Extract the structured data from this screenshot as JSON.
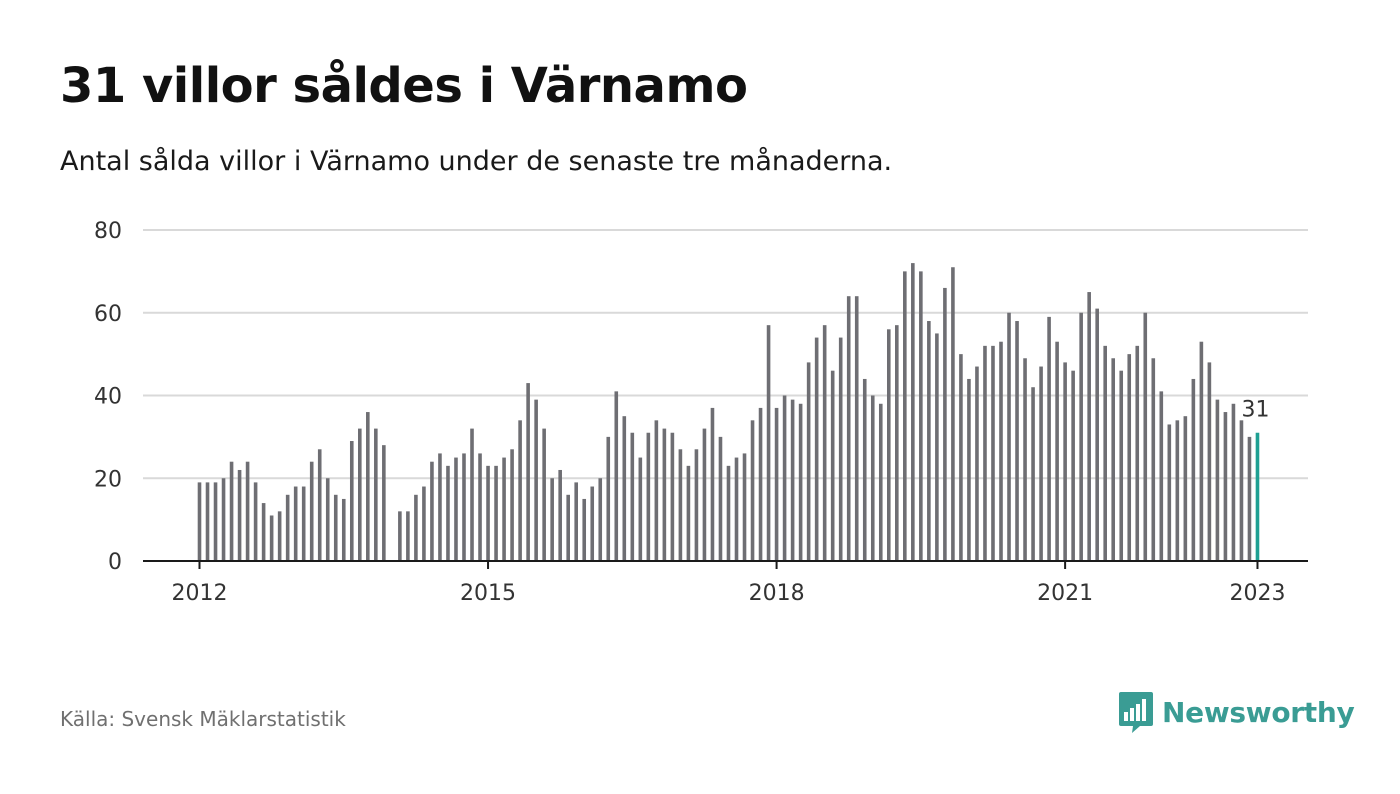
{
  "title": "31 villor såldes i Värnamo",
  "subtitle": "Antal sålda villor i Värnamo under de senaste tre månaderna.",
  "source": "Källa: Svensk Mäklarstatistik",
  "brand": {
    "name": "Newsworthy",
    "color": "#3a9c94",
    "icon": "bar-chart-speech-bubble-icon"
  },
  "chart_data": {
    "type": "bar",
    "title": "31 villor såldes i Värnamo",
    "xlabel": "",
    "ylabel": "",
    "ylim": [
      0,
      80
    ],
    "y_ticks": [
      0,
      20,
      40,
      60,
      80
    ],
    "x_ticks": [
      "2012",
      "2015",
      "2018",
      "2021",
      "2023"
    ],
    "grid": true,
    "bar_color": "#6e6e73",
    "highlight_color": "#1fa093",
    "highlight_label": "31",
    "values": [
      19,
      19,
      19,
      20,
      24,
      22,
      24,
      19,
      14,
      11,
      12,
      16,
      18,
      18,
      24,
      27,
      20,
      16,
      15,
      29,
      32,
      36,
      32,
      28,
      null,
      12,
      12,
      16,
      18,
      24,
      26,
      23,
      25,
      26,
      32,
      26,
      23,
      23,
      25,
      27,
      34,
      43,
      39,
      32,
      20,
      22,
      16,
      19,
      15,
      18,
      20,
      30,
      41,
      35,
      31,
      25,
      31,
      34,
      32,
      31,
      27,
      23,
      27,
      32,
      37,
      30,
      23,
      25,
      26,
      34,
      37,
      57,
      37,
      40,
      39,
      38,
      48,
      54,
      57,
      46,
      54,
      64,
      64,
      44,
      40,
      38,
      56,
      57,
      70,
      72,
      70,
      58,
      55,
      66,
      71,
      50,
      44,
      47,
      52,
      52,
      53,
      60,
      58,
      49,
      42,
      47,
      59,
      53,
      48,
      46,
      60,
      65,
      61,
      52,
      49,
      46,
      50,
      52,
      60,
      49,
      41,
      33,
      34,
      35,
      44,
      53,
      48,
      39,
      36,
      38,
      34,
      30,
      31
    ]
  }
}
